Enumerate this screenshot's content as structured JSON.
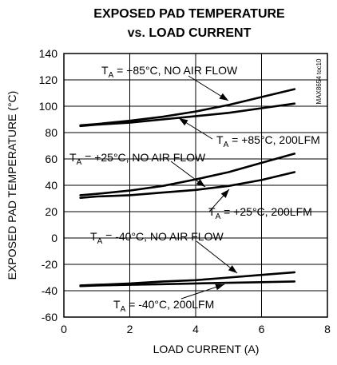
{
  "chart_data": {
    "type": "line",
    "title": "EXPOSED PAD TEMPERATURE",
    "subtitle": "vs. LOAD CURRENT",
    "xlabel": "LOAD CURRENT (A)",
    "ylabel": "EXPOSED PAD TEMPERATURE (°C)",
    "xlim": [
      0,
      8
    ],
    "ylim": [
      -60,
      140
    ],
    "xticks": [
      "0",
      "2",
      "4",
      "6",
      "8"
    ],
    "yticks": [
      "140",
      "120",
      "100",
      "80",
      "60",
      "40",
      "20",
      "0",
      "-20",
      "-40",
      "-60"
    ],
    "grid": true,
    "part_code": "MAX8654 toc10",
    "series": [
      {
        "name": "TA = +85°C, NO AIR FLOW",
        "x": [
          0.5,
          1,
          2,
          3,
          4,
          5,
          6,
          7
        ],
        "y": [
          85.5,
          86.5,
          89,
          92,
          96,
          101,
          107,
          113
        ]
      },
      {
        "name": "TA = +85°C, 200LFM",
        "x": [
          0.5,
          1,
          2,
          3,
          4,
          5,
          6,
          7
        ],
        "y": [
          85,
          86,
          87.5,
          90,
          92.5,
          95,
          98.5,
          102
        ]
      },
      {
        "name": "TA = +25°C, NO AIR FLOW",
        "x": [
          0.5,
          1,
          2,
          3,
          4,
          5,
          6,
          7
        ],
        "y": [
          32.5,
          33.5,
          36,
          39.5,
          44.5,
          50,
          57,
          64
        ]
      },
      {
        "name": "TA = +25°C, 200LFM",
        "x": [
          0.5,
          1,
          2,
          3,
          4,
          5,
          6,
          7
        ],
        "y": [
          30.5,
          31.5,
          32.5,
          34.5,
          36.5,
          39.5,
          44,
          50
        ]
      },
      {
        "name": "TA = -40°C, NO AIR FLOW",
        "x": [
          0.5,
          1,
          2,
          3,
          4,
          5,
          6,
          7
        ],
        "y": [
          -36,
          -35.5,
          -34.5,
          -33,
          -32,
          -30,
          -28,
          -26
        ]
      },
      {
        "name": "TA = -40°C, 200LFM",
        "x": [
          0.5,
          1,
          2,
          3,
          4,
          5,
          6,
          7
        ],
        "y": [
          -36.5,
          -36,
          -35.5,
          -35,
          -34.5,
          -34,
          -33.5,
          -33
        ]
      }
    ],
    "annotations": [
      {
        "pre": "T",
        "sub": "A",
        "post": " = +85°C, NO AIR FLOW",
        "series": 0
      },
      {
        "pre": "T",
        "sub": "A",
        "post": " = +85°C, 200LFM",
        "series": 1
      },
      {
        "pre": "T",
        "sub": "A",
        "post": " = +25°C, NO AIR FLOW",
        "series": 2
      },
      {
        "pre": "T",
        "sub": "A",
        "post": " = +25°C, 200LFM",
        "series": 3
      },
      {
        "pre": "T",
        "sub": "A",
        "post": " = -40°C, NO AIR FLOW",
        "series": 4
      },
      {
        "pre": "T",
        "sub": "A",
        "post": " = -40°C, 200LFM",
        "series": 5
      }
    ]
  }
}
